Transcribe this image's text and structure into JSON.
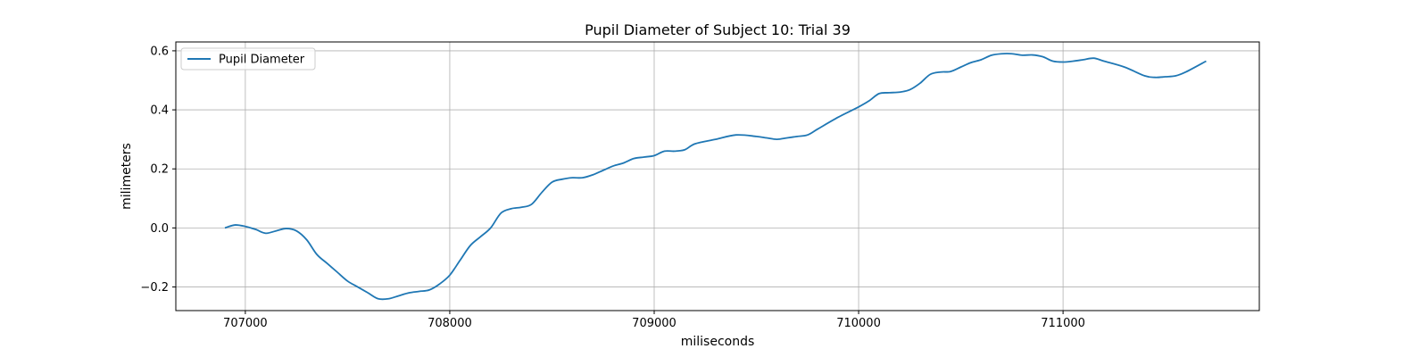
{
  "chart_data": {
    "type": "line",
    "title": "Pupil Diameter of Subject 10: Trial 39",
    "xlabel": "miliseconds",
    "ylabel": "milimeters",
    "xlim": [
      706660,
      711960
    ],
    "ylim": [
      -0.28,
      0.63
    ],
    "xticks": [
      707000,
      708000,
      709000,
      710000,
      711000
    ],
    "xtick_labels": [
      "707000",
      "708000",
      "709000",
      "710000",
      "711000"
    ],
    "yticks": [
      -0.2,
      0.0,
      0.2,
      0.4,
      0.6
    ],
    "ytick_labels": [
      "−0.2",
      "0.0",
      "0.2",
      "0.4",
      "0.6"
    ],
    "grid": true,
    "legend": {
      "position": "top-left"
    },
    "series": [
      {
        "name": "Pupil Diameter",
        "color": "#1f77b4",
        "points": [
          [
            706900,
            0.0
          ],
          [
            706950,
            0.01
          ],
          [
            707000,
            0.005
          ],
          [
            707050,
            -0.005
          ],
          [
            707100,
            -0.018
          ],
          [
            707150,
            -0.01
          ],
          [
            707200,
            -0.002
          ],
          [
            707250,
            -0.01
          ],
          [
            707300,
            -0.04
          ],
          [
            707350,
            -0.09
          ],
          [
            707400,
            -0.12
          ],
          [
            707450,
            -0.15
          ],
          [
            707500,
            -0.18
          ],
          [
            707550,
            -0.2
          ],
          [
            707600,
            -0.22
          ],
          [
            707650,
            -0.24
          ],
          [
            707700,
            -0.24
          ],
          [
            707750,
            -0.23
          ],
          [
            707800,
            -0.22
          ],
          [
            707850,
            -0.215
          ],
          [
            707900,
            -0.21
          ],
          [
            707950,
            -0.19
          ],
          [
            708000,
            -0.16
          ],
          [
            708050,
            -0.11
          ],
          [
            708100,
            -0.06
          ],
          [
            708150,
            -0.03
          ],
          [
            708200,
            0.0
          ],
          [
            708250,
            0.05
          ],
          [
            708300,
            0.065
          ],
          [
            708350,
            0.07
          ],
          [
            708400,
            0.08
          ],
          [
            708450,
            0.12
          ],
          [
            708500,
            0.155
          ],
          [
            708550,
            0.165
          ],
          [
            708600,
            0.17
          ],
          [
            708650,
            0.17
          ],
          [
            708700,
            0.18
          ],
          [
            708750,
            0.195
          ],
          [
            708800,
            0.21
          ],
          [
            708850,
            0.22
          ],
          [
            708900,
            0.235
          ],
          [
            708950,
            0.24
          ],
          [
            709000,
            0.245
          ],
          [
            709050,
            0.26
          ],
          [
            709100,
            0.26
          ],
          [
            709150,
            0.265
          ],
          [
            709200,
            0.285
          ],
          [
            709300,
            0.3
          ],
          [
            709400,
            0.315
          ],
          [
            709500,
            0.31
          ],
          [
            709550,
            0.305
          ],
          [
            709600,
            0.3
          ],
          [
            709650,
            0.305
          ],
          [
            709700,
            0.31
          ],
          [
            709750,
            0.315
          ],
          [
            709800,
            0.335
          ],
          [
            709900,
            0.375
          ],
          [
            710000,
            0.41
          ],
          [
            710050,
            0.43
          ],
          [
            710100,
            0.455
          ],
          [
            710150,
            0.458
          ],
          [
            710200,
            0.46
          ],
          [
            710250,
            0.468
          ],
          [
            710300,
            0.49
          ],
          [
            710350,
            0.52
          ],
          [
            710400,
            0.528
          ],
          [
            710450,
            0.53
          ],
          [
            710500,
            0.545
          ],
          [
            710550,
            0.56
          ],
          [
            710600,
            0.57
          ],
          [
            710650,
            0.585
          ],
          [
            710700,
            0.59
          ],
          [
            710750,
            0.59
          ],
          [
            710800,
            0.585
          ],
          [
            710850,
            0.586
          ],
          [
            710900,
            0.58
          ],
          [
            710950,
            0.565
          ],
          [
            711000,
            0.562
          ],
          [
            711050,
            0.565
          ],
          [
            711100,
            0.57
          ],
          [
            711150,
            0.575
          ],
          [
            711200,
            0.565
          ],
          [
            711300,
            0.545
          ],
          [
            711400,
            0.515
          ],
          [
            711450,
            0.51
          ],
          [
            711500,
            0.512
          ],
          [
            711550,
            0.515
          ],
          [
            711600,
            0.528
          ],
          [
            711700,
            0.565
          ]
        ]
      }
    ]
  }
}
